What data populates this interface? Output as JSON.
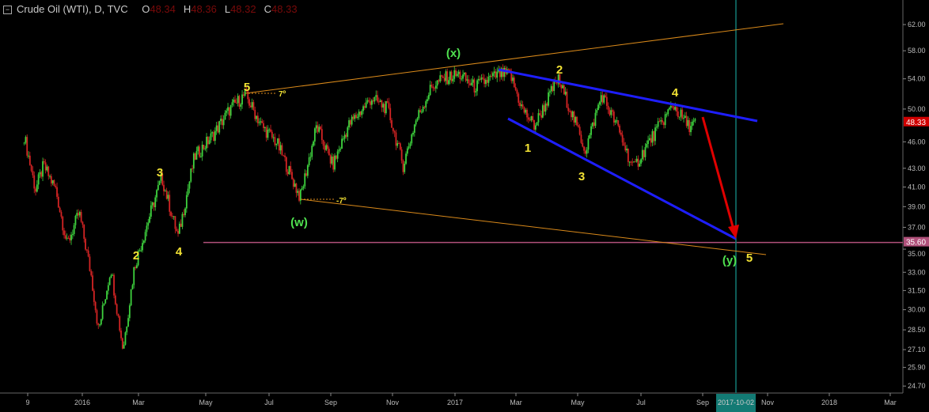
{
  "header": {
    "symbol": "Crude Oil (WTI), D, TVC",
    "o_label": "O",
    "o": "48.34",
    "h_label": "H",
    "h": "48.36",
    "l_label": "L",
    "l": "48.32",
    "c_label": "C",
    "c": "48.33",
    "collapse_icon": "square-minus-icon"
  },
  "colors": {
    "up": "#3ed23e",
    "down": "#d42424",
    "trend_orange": "#d9891a",
    "channel_blue": "#1e1eff",
    "arrow_red": "#e00000",
    "level_magenta": "#b0507a",
    "time_teal": "#137a74",
    "wave_yellow": "#f2e234",
    "wave_green": "#4fe04f"
  },
  "chart_data": {
    "type": "candlestick",
    "y_scale": "log",
    "ylim": [
      24.0,
      65.0
    ],
    "y_ticks": [
      "62.00",
      "58.00",
      "54.00",
      "50.00",
      "46.00",
      "43.00",
      "41.00",
      "39.00",
      "37.00",
      "35.00",
      "33.00",
      "31.50",
      "30.00",
      "28.50",
      "27.10",
      "25.90",
      "24.70"
    ],
    "x_ticks": [
      "9",
      "2016",
      "Mar",
      "May",
      "Jul",
      "Sep",
      "Nov",
      "2017",
      "Mar",
      "May",
      "Jul",
      "Sep",
      "Nov",
      "2018",
      "Mar"
    ],
    "last_price": "48.33",
    "level_price": "35.60",
    "time_marker": "2017-10-02",
    "price_path": [
      [
        "2015-11-05",
        46.7
      ],
      [
        "2015-11-16",
        40.7
      ],
      [
        "2015-11-24",
        43.3
      ],
      [
        "2015-12-06",
        40.7
      ],
      [
        "2015-12-17",
        35.4
      ],
      [
        "2015-12-29",
        38.4
      ],
      [
        "2016-01-10",
        32.6
      ],
      [
        "2016-01-17",
        28.4
      ],
      [
        "2016-01-29",
        33.4
      ],
      [
        "2016-02-10",
        27.1
      ],
      [
        "2016-02-21",
        33.4
      ],
      [
        "2016-03-08",
        38.4
      ],
      [
        "2016-03-19",
        42.0
      ],
      [
        "2016-04-04",
        36.1
      ],
      [
        "2016-04-20",
        44.2
      ],
      [
        "2016-05-09",
        46.9
      ],
      [
        "2016-05-25",
        50.0
      ],
      [
        "2016-06-09",
        51.9
      ],
      [
        "2016-06-25",
        47.9
      ],
      [
        "2016-07-10",
        45.9
      ],
      [
        "2016-08-02",
        39.9
      ],
      [
        "2016-08-18",
        47.9
      ],
      [
        "2016-09-03",
        43.3
      ],
      [
        "2016-09-18",
        47.9
      ],
      [
        "2016-10-11",
        51.4
      ],
      [
        "2016-10-27",
        50.0
      ],
      [
        "2016-11-11",
        43.3
      ],
      [
        "2016-11-23",
        48.4
      ],
      [
        "2016-12-09",
        52.9
      ],
      [
        "2016-12-20",
        54.0
      ],
      [
        "2017-01-05",
        54.6
      ],
      [
        "2017-01-20",
        52.9
      ],
      [
        "2017-02-13",
        54.6
      ],
      [
        "2017-02-24",
        54.6
      ],
      [
        "2017-03-08",
        50.0
      ],
      [
        "2017-03-20",
        47.9
      ],
      [
        "2017-04-12",
        54.0
      ],
      [
        "2017-04-24",
        50.0
      ],
      [
        "2017-05-09",
        45.0
      ],
      [
        "2017-05-25",
        51.9
      ],
      [
        "2017-06-09",
        47.9
      ],
      [
        "2017-06-25",
        42.9
      ],
      [
        "2017-07-10",
        45.9
      ],
      [
        "2017-08-03",
        50.5
      ],
      [
        "2017-08-18",
        47.9
      ],
      [
        "2017-08-26",
        48.33
      ]
    ],
    "annotations": {
      "wave_labels": [
        "5",
        "3",
        "2",
        "4",
        "(w)",
        "(x)",
        "2",
        "1",
        "3",
        "4",
        "(y)",
        "5"
      ],
      "angle_labels": [
        "7º",
        "-7º"
      ]
    }
  }
}
